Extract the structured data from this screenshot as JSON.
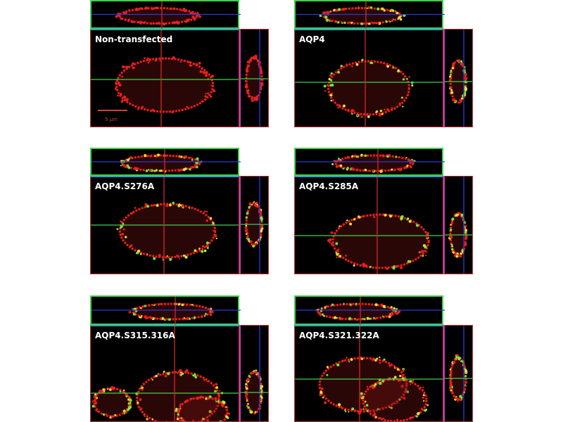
{
  "figure": {
    "panels": [
      {
        "label": "Non-transfected",
        "scale_bar": "5 µm",
        "signal": "red"
      },
      {
        "label": "AQP4",
        "signal": "red-green"
      },
      {
        "label": "AQP4.S276A",
        "signal": "red-green"
      },
      {
        "label": "AQP4.S285A",
        "signal": "red-green"
      },
      {
        "label": "AQP4.S315.316A",
        "signal": "red-green"
      },
      {
        "label": "AQP4.S321.322A",
        "signal": "red-green"
      }
    ],
    "colors": {
      "membrane": "#e8201c",
      "aqp4": "#6ee83a",
      "xz_line": "#3fd24a",
      "yz_line": "#d22a2a",
      "z_line": "#2a3ad8"
    }
  }
}
